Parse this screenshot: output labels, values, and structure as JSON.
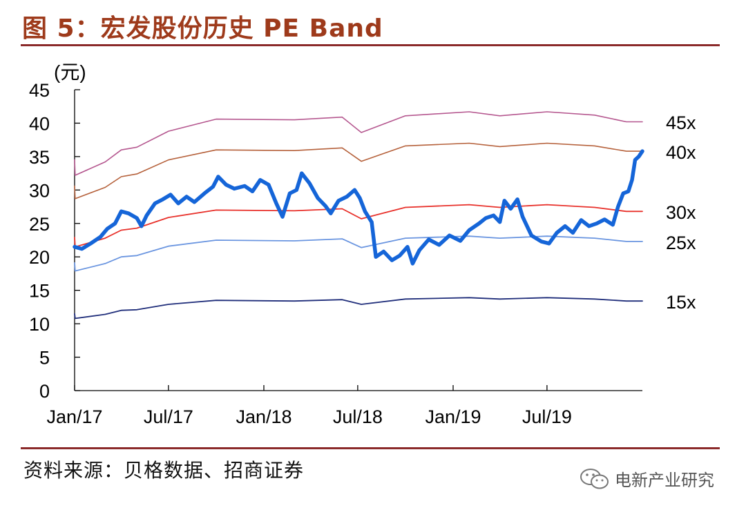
{
  "header": {
    "title": "图 5：宏发股份历史 PE Band"
  },
  "footer": {
    "source": "资料来源：贝格数据、招商证券",
    "watermark": "电新产业研究",
    "watermark_icon": "wechat-icon"
  },
  "chart_data": {
    "type": "line",
    "title": "图 5：宏发股份历史 PE Band",
    "ylabel": "(元)",
    "xlabel": "",
    "ylim": [
      0,
      45
    ],
    "yticks": [
      0,
      5,
      10,
      15,
      20,
      25,
      30,
      35,
      40,
      45
    ],
    "xlim": [
      "2017-01-01",
      "2020-01-01"
    ],
    "xticks": [
      {
        "label": "Jan/17",
        "date": "2017-01-01"
      },
      {
        "label": "Jul/17",
        "date": "2017-07-01"
      },
      {
        "label": "Jan/18",
        "date": "2018-01-01"
      },
      {
        "label": "Jul/18",
        "date": "2018-07-01"
      },
      {
        "label": "Jan/19",
        "date": "2019-01-01"
      },
      {
        "label": "Jul/19",
        "date": "2019-07-01"
      }
    ],
    "grid": false,
    "series": [
      {
        "name": "45x",
        "color": "#b5578f",
        "width": 1.6,
        "points": [
          [
            "2017-01-01",
            34.5
          ],
          [
            "2017-01-02",
            32.2
          ],
          [
            "2017-03-01",
            34.2
          ],
          [
            "2017-04-01",
            36.0
          ],
          [
            "2017-05-01",
            36.4
          ],
          [
            "2017-07-01",
            38.8
          ],
          [
            "2017-10-01",
            40.6
          ],
          [
            "2018-03-01",
            40.5
          ],
          [
            "2018-06-01",
            40.9
          ],
          [
            "2018-07-08",
            38.6
          ],
          [
            "2018-10-01",
            41.1
          ],
          [
            "2019-02-01",
            41.7
          ],
          [
            "2019-04-01",
            41.1
          ],
          [
            "2019-07-01",
            41.7
          ],
          [
            "2019-10-01",
            41.2
          ],
          [
            "2019-12-01",
            40.2
          ],
          [
            "2020-01-01",
            40.2
          ]
        ]
      },
      {
        "name": "40x",
        "color": "#b5603a",
        "width": 1.6,
        "points": [
          [
            "2017-01-01",
            30.6
          ],
          [
            "2017-01-02",
            28.7
          ],
          [
            "2017-03-01",
            30.4
          ],
          [
            "2017-04-01",
            32.0
          ],
          [
            "2017-05-01",
            32.4
          ],
          [
            "2017-07-01",
            34.5
          ],
          [
            "2017-10-01",
            36.0
          ],
          [
            "2018-03-01",
            35.9
          ],
          [
            "2018-06-01",
            36.3
          ],
          [
            "2018-07-08",
            34.3
          ],
          [
            "2018-10-01",
            36.6
          ],
          [
            "2019-02-01",
            37.0
          ],
          [
            "2019-04-01",
            36.5
          ],
          [
            "2019-07-01",
            37.0
          ],
          [
            "2019-10-01",
            36.6
          ],
          [
            "2019-12-01",
            35.8
          ],
          [
            "2020-01-01",
            35.8
          ]
        ]
      },
      {
        "name": "30x",
        "color": "#e8302a",
        "width": 1.8,
        "points": [
          [
            "2017-01-01",
            22.9
          ],
          [
            "2017-01-02",
            21.5
          ],
          [
            "2017-03-01",
            22.8
          ],
          [
            "2017-04-01",
            24.0
          ],
          [
            "2017-05-01",
            24.3
          ],
          [
            "2017-07-01",
            25.9
          ],
          [
            "2017-10-01",
            27.0
          ],
          [
            "2018-03-01",
            26.9
          ],
          [
            "2018-06-01",
            27.2
          ],
          [
            "2018-07-08",
            25.7
          ],
          [
            "2018-10-01",
            27.4
          ],
          [
            "2019-02-01",
            27.8
          ],
          [
            "2019-04-01",
            27.4
          ],
          [
            "2019-07-01",
            27.8
          ],
          [
            "2019-10-01",
            27.4
          ],
          [
            "2019-12-01",
            26.8
          ],
          [
            "2020-01-01",
            26.8
          ]
        ]
      },
      {
        "name": "25x",
        "color": "#6a95e0",
        "width": 1.8,
        "points": [
          [
            "2017-01-01",
            19.1
          ],
          [
            "2017-01-02",
            17.9
          ],
          [
            "2017-03-01",
            19.0
          ],
          [
            "2017-04-01",
            20.0
          ],
          [
            "2017-05-01",
            20.2
          ],
          [
            "2017-07-01",
            21.6
          ],
          [
            "2017-10-01",
            22.5
          ],
          [
            "2018-03-01",
            22.4
          ],
          [
            "2018-06-01",
            22.7
          ],
          [
            "2018-07-08",
            21.4
          ],
          [
            "2018-10-01",
            22.8
          ],
          [
            "2019-02-01",
            23.1
          ],
          [
            "2019-04-01",
            22.8
          ],
          [
            "2019-07-01",
            23.1
          ],
          [
            "2019-10-01",
            22.8
          ],
          [
            "2019-12-01",
            22.3
          ],
          [
            "2020-01-01",
            22.3
          ]
        ]
      },
      {
        "name": "15x",
        "color": "#1f2d7a",
        "width": 1.8,
        "points": [
          [
            "2017-01-01",
            11.5
          ],
          [
            "2017-01-02",
            10.8
          ],
          [
            "2017-03-01",
            11.4
          ],
          [
            "2017-04-01",
            12.0
          ],
          [
            "2017-05-01",
            12.1
          ],
          [
            "2017-07-01",
            12.9
          ],
          [
            "2017-10-01",
            13.5
          ],
          [
            "2018-03-01",
            13.4
          ],
          [
            "2018-06-01",
            13.6
          ],
          [
            "2018-07-08",
            12.9
          ],
          [
            "2018-10-01",
            13.7
          ],
          [
            "2019-02-01",
            13.9
          ],
          [
            "2019-04-01",
            13.7
          ],
          [
            "2019-07-01",
            13.9
          ],
          [
            "2019-10-01",
            13.7
          ],
          [
            "2019-12-01",
            13.4
          ],
          [
            "2020-01-01",
            13.4
          ]
        ]
      },
      {
        "name": "",
        "color": "#1565d8",
        "width": 5.5,
        "points": [
          [
            "2017-01-01",
            21.5
          ],
          [
            "2017-01-15",
            21.2
          ],
          [
            "2017-02-01",
            22.0
          ],
          [
            "2017-02-20",
            23.0
          ],
          [
            "2017-03-05",
            24.2
          ],
          [
            "2017-03-20",
            25.0
          ],
          [
            "2017-04-01",
            26.8
          ],
          [
            "2017-04-15",
            26.5
          ],
          [
            "2017-05-01",
            25.8
          ],
          [
            "2017-05-10",
            24.6
          ],
          [
            "2017-05-20",
            26.2
          ],
          [
            "2017-06-05",
            28.0
          ],
          [
            "2017-06-20",
            28.6
          ],
          [
            "2017-07-05",
            29.3
          ],
          [
            "2017-07-20",
            28.0
          ],
          [
            "2017-08-05",
            29.0
          ],
          [
            "2017-08-20",
            28.2
          ],
          [
            "2017-09-10",
            29.6
          ],
          [
            "2017-09-25",
            30.5
          ],
          [
            "2017-10-05",
            32.0
          ],
          [
            "2017-10-20",
            30.8
          ],
          [
            "2017-11-05",
            30.2
          ],
          [
            "2017-11-25",
            30.6
          ],
          [
            "2017-12-10",
            29.8
          ],
          [
            "2017-12-25",
            31.5
          ],
          [
            "2018-01-10",
            30.8
          ],
          [
            "2018-01-25",
            28.0
          ],
          [
            "2018-02-06",
            26.0
          ],
          [
            "2018-02-20",
            29.5
          ],
          [
            "2018-03-05",
            30.0
          ],
          [
            "2018-03-15",
            32.5
          ],
          [
            "2018-03-30",
            31.0
          ],
          [
            "2018-04-15",
            28.8
          ],
          [
            "2018-04-30",
            27.6
          ],
          [
            "2018-05-10",
            26.5
          ],
          [
            "2018-05-25",
            28.4
          ],
          [
            "2018-06-10",
            29.0
          ],
          [
            "2018-06-25",
            30.0
          ],
          [
            "2018-07-05",
            28.8
          ],
          [
            "2018-07-15",
            26.8
          ],
          [
            "2018-07-28",
            25.2
          ],
          [
            "2018-08-05",
            20.0
          ],
          [
            "2018-08-20",
            20.8
          ],
          [
            "2018-09-05",
            19.5
          ],
          [
            "2018-09-20",
            20.2
          ],
          [
            "2018-10-05",
            21.5
          ],
          [
            "2018-10-15",
            19.0
          ],
          [
            "2018-10-28",
            21.0
          ],
          [
            "2018-11-15",
            22.6
          ],
          [
            "2018-12-05",
            21.8
          ],
          [
            "2018-12-25",
            23.2
          ],
          [
            "2019-01-15",
            22.4
          ],
          [
            "2019-02-01",
            24.0
          ],
          [
            "2019-02-20",
            25.0
          ],
          [
            "2019-03-05",
            25.8
          ],
          [
            "2019-03-20",
            26.2
          ],
          [
            "2019-04-01",
            25.2
          ],
          [
            "2019-04-10",
            28.4
          ],
          [
            "2019-04-22",
            27.2
          ],
          [
            "2019-05-05",
            28.6
          ],
          [
            "2019-05-15",
            26.0
          ],
          [
            "2019-06-01",
            23.2
          ],
          [
            "2019-06-20",
            22.3
          ],
          [
            "2019-07-05",
            22.0
          ],
          [
            "2019-07-20",
            23.6
          ],
          [
            "2019-08-05",
            24.6
          ],
          [
            "2019-08-20",
            23.6
          ],
          [
            "2019-09-05",
            25.5
          ],
          [
            "2019-09-20",
            24.6
          ],
          [
            "2019-10-05",
            25.0
          ],
          [
            "2019-10-20",
            25.6
          ],
          [
            "2019-11-05",
            24.8
          ],
          [
            "2019-11-15",
            27.5
          ],
          [
            "2019-11-25",
            29.5
          ],
          [
            "2019-12-05",
            29.8
          ],
          [
            "2019-12-12",
            31.5
          ],
          [
            "2019-12-18",
            34.5
          ],
          [
            "2019-12-25",
            35.0
          ],
          [
            "2020-01-01",
            35.8
          ]
        ]
      }
    ]
  }
}
